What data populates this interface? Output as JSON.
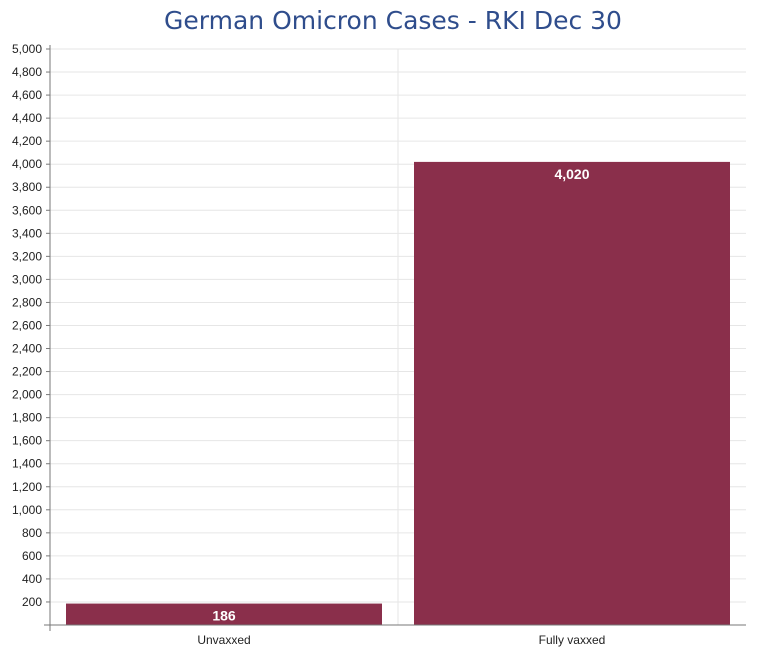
{
  "chart_data": {
    "type": "bar",
    "title": "German Omicron Cases - RKI Dec 30",
    "categories": [
      "Unvaxxed",
      "Fully vaxxed"
    ],
    "values": [
      186,
      4020
    ],
    "data_labels": [
      "186",
      "4,020"
    ],
    "xlabel": "",
    "ylabel": "",
    "ylim": [
      0,
      5000
    ],
    "yticks": [
      200,
      400,
      600,
      800,
      1000,
      1200,
      1400,
      1600,
      1800,
      2000,
      2200,
      2400,
      2600,
      2800,
      3000,
      3200,
      3400,
      3600,
      3800,
      4000,
      4200,
      4400,
      4600,
      4800,
      5000
    ],
    "ytick_labels": [
      "200",
      "400",
      "600",
      "800",
      "1,000",
      "1,200",
      "1,400",
      "1,600",
      "1,800",
      "2,000",
      "2,200",
      "2,400",
      "2,600",
      "2,800",
      "3,000",
      "3,200",
      "3,400",
      "3,600",
      "3,800",
      "4,000",
      "4,200",
      "4,400",
      "4,600",
      "4,800",
      "5,000"
    ],
    "grid": true,
    "legend": "none",
    "bar_color": "#8a2f4b"
  }
}
